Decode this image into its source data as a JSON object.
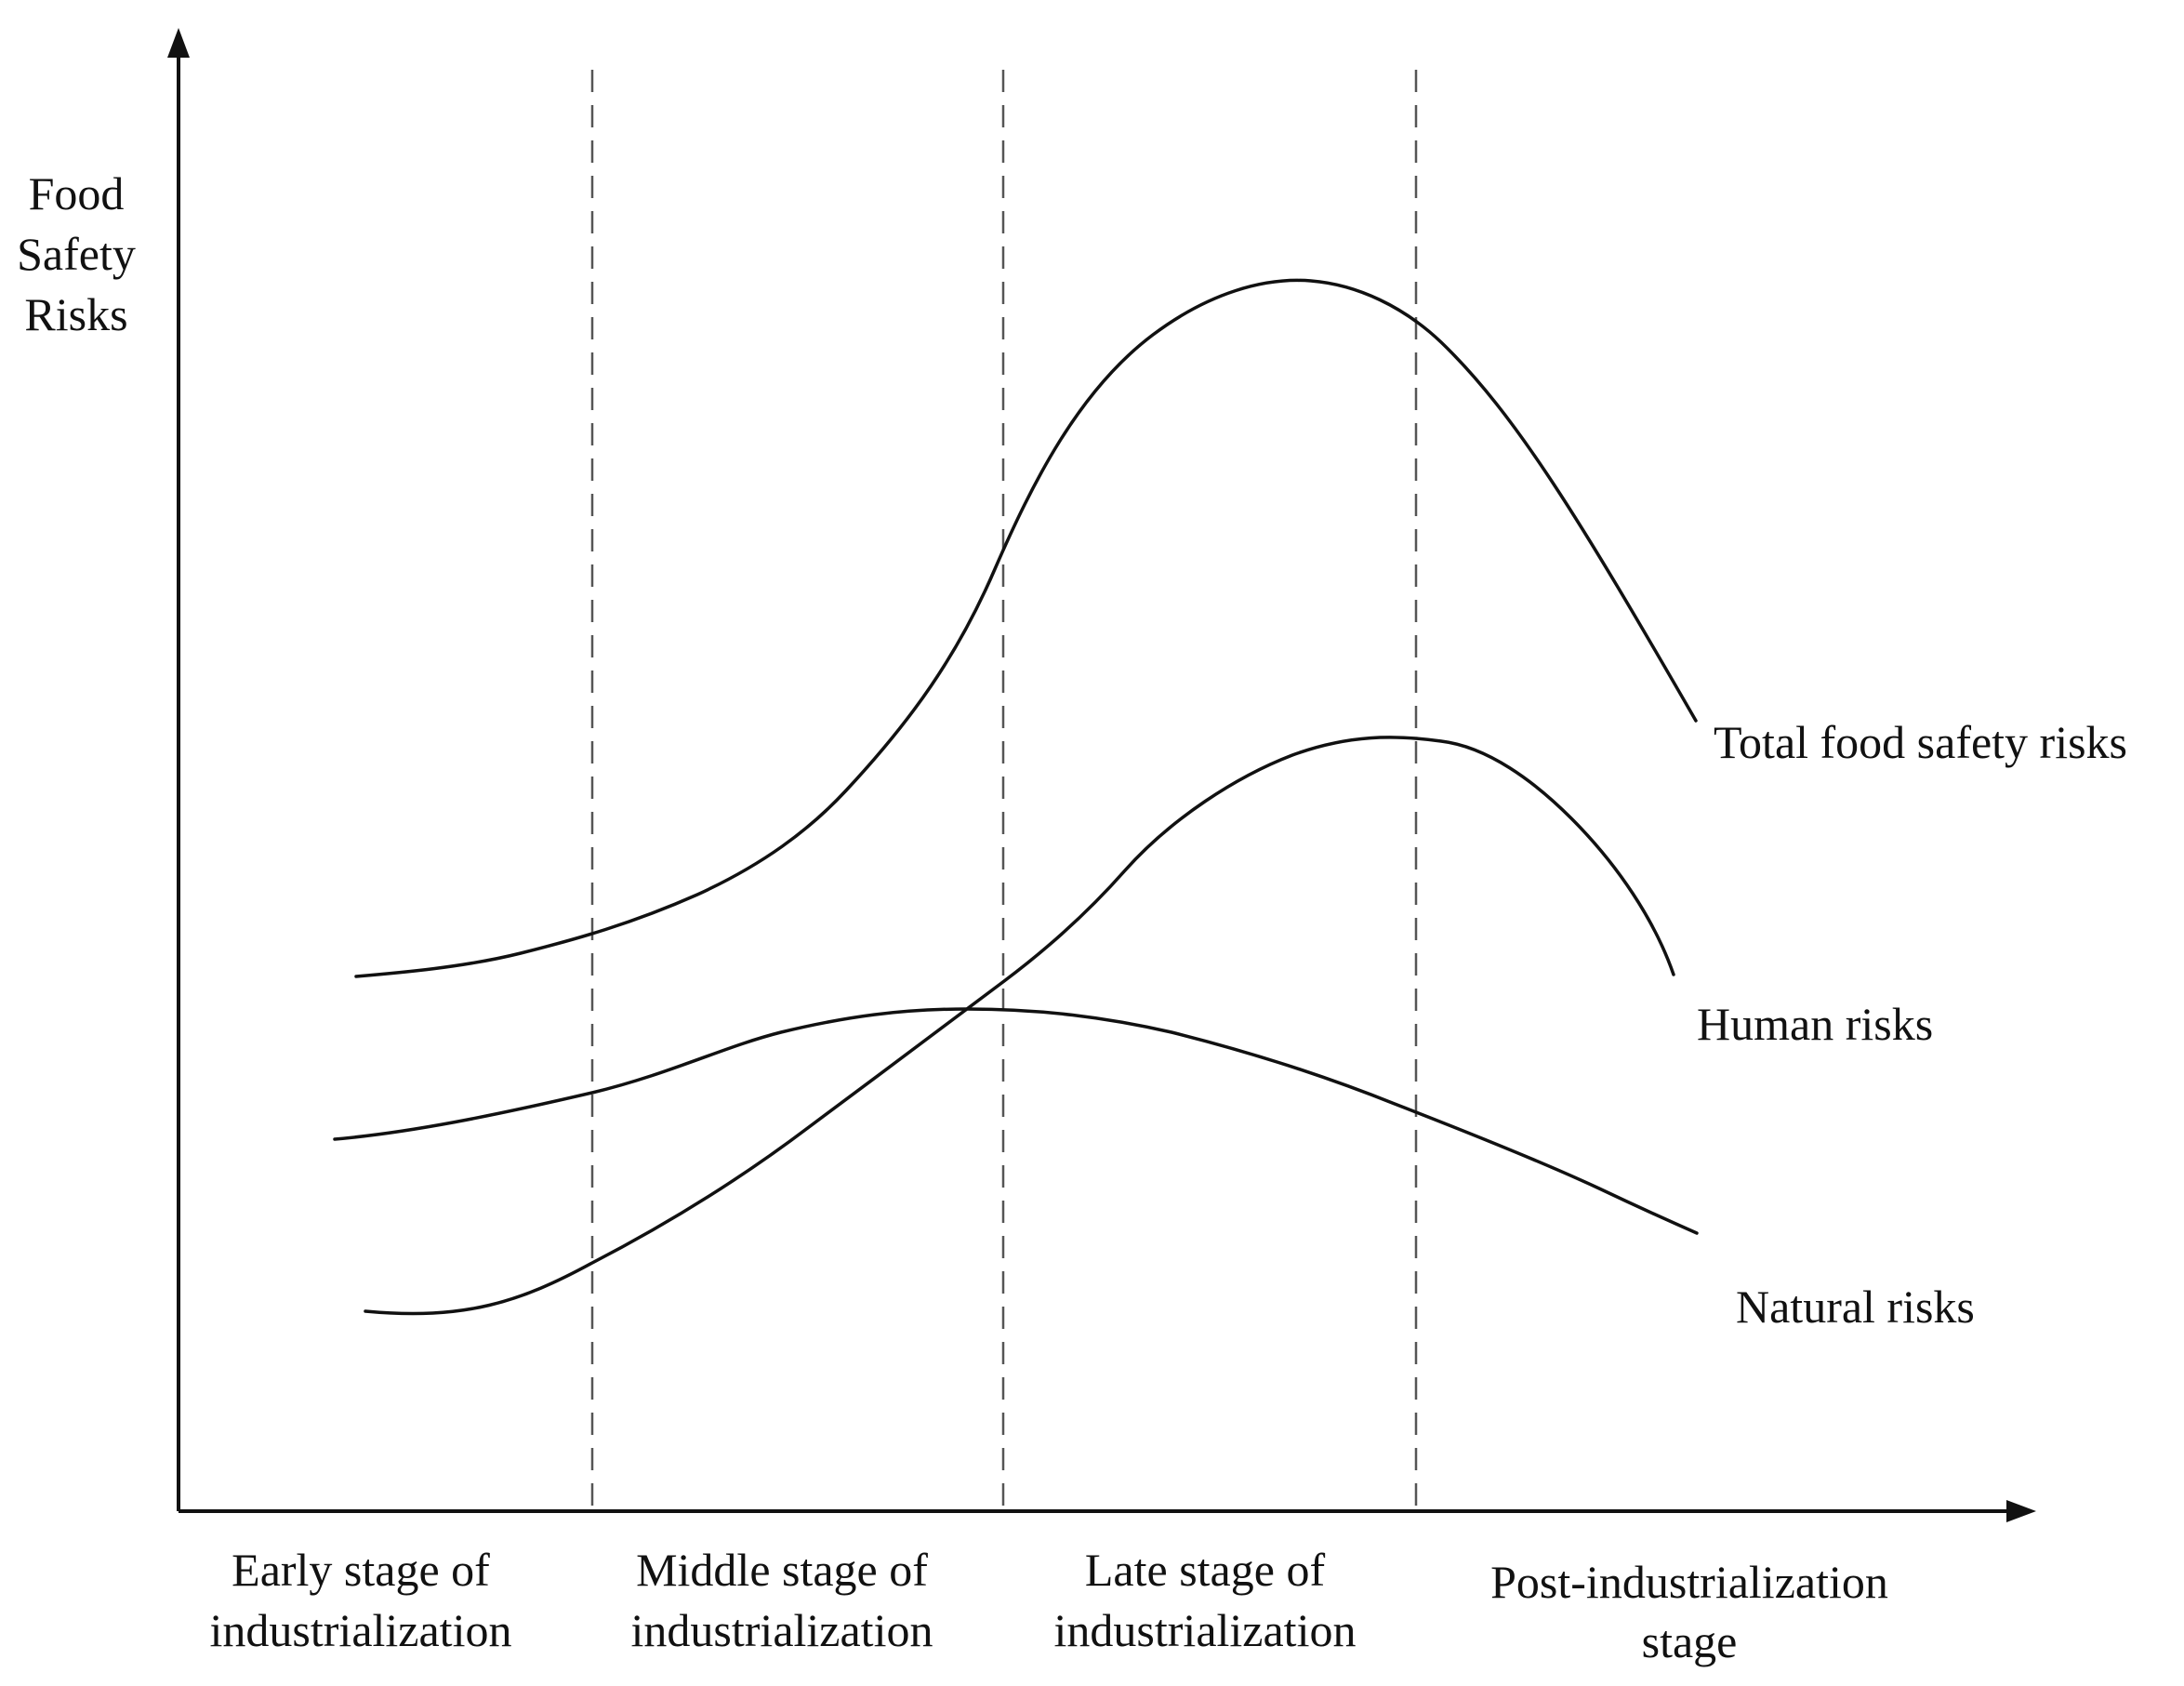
{
  "y_axis_label": [
    "Food",
    "Safety",
    "Risks"
  ],
  "stages": [
    [
      "Early stage of",
      "industrialization"
    ],
    [
      "Middle stage of",
      "industrialization"
    ],
    [
      "Late stage of",
      "industrialization"
    ],
    [
      "Post-industrialization",
      "stage"
    ]
  ],
  "curves": [
    {
      "key": "total",
      "label": "Total food safety risks"
    },
    {
      "key": "human",
      "label": "Human risks"
    },
    {
      "key": "natural",
      "label": "Natural risks"
    }
  ],
  "colors": {
    "line": "#111111",
    "divider": "#555555",
    "background": "#ffffff"
  }
}
